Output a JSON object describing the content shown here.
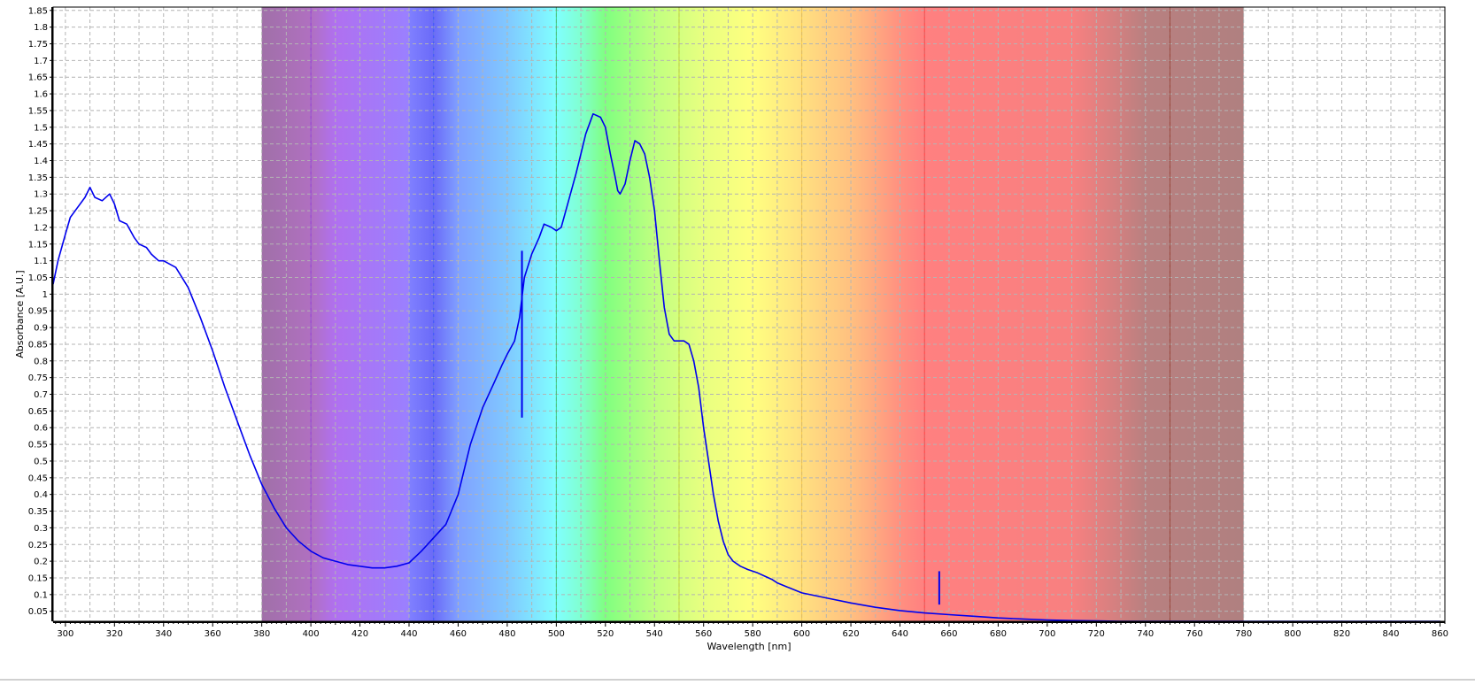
{
  "chart_data": {
    "type": "line",
    "title": "",
    "xlabel": "Wavelength [nm]",
    "ylabel": "Absorbance [A.U.]",
    "xlim": [
      295,
      862
    ],
    "ylim": [
      0.02,
      1.86
    ],
    "x_ticks": [
      300,
      320,
      340,
      360,
      380,
      400,
      420,
      440,
      460,
      480,
      500,
      520,
      540,
      560,
      580,
      600,
      620,
      640,
      660,
      680,
      700,
      720,
      740,
      760,
      780,
      800,
      820,
      840,
      860
    ],
    "y_ticks": [
      0.05,
      0.1,
      0.15,
      0.2,
      0.25,
      0.3,
      0.35,
      0.4,
      0.45,
      0.5,
      0.55,
      0.6,
      0.65,
      0.7,
      0.75,
      0.8,
      0.85,
      0.9,
      0.95,
      1,
      1.05,
      1.1,
      1.15,
      1.2,
      1.25,
      1.3,
      1.35,
      1.4,
      1.45,
      1.5,
      1.55,
      1.6,
      1.65,
      1.7,
      1.75,
      1.8,
      1.85
    ],
    "grid": true,
    "line_color": "#0000ee",
    "series": [
      {
        "x": [
          295,
          297,
          300,
          302,
          305,
          308,
          310,
          312,
          315,
          318,
          320,
          322,
          325,
          328,
          330,
          333,
          335,
          338,
          340,
          345,
          350,
          355,
          360,
          365,
          370,
          375,
          380,
          385,
          390,
          395,
          400,
          405,
          410,
          415,
          420,
          425,
          430,
          435,
          440,
          445,
          450,
          455,
          460,
          465,
          470,
          475,
          478,
          480,
          483,
          485,
          487,
          490,
          493,
          495,
          498,
          500,
          502,
          505,
          508,
          510,
          512,
          515,
          518,
          520,
          522,
          524,
          525,
          526,
          528,
          530,
          532,
          534,
          536,
          538,
          540,
          542,
          544,
          546,
          548,
          550,
          552,
          554,
          556,
          558,
          560,
          562,
          564,
          566,
          568,
          570,
          572,
          575,
          578,
          580,
          582,
          585,
          588,
          590,
          595,
          600,
          610,
          620,
          630,
          640,
          650,
          660,
          670,
          680,
          690,
          700,
          710,
          720,
          730,
          740,
          750,
          760,
          770,
          780,
          790,
          800,
          820,
          840,
          860
        ],
        "y": [
          1.03,
          1.1,
          1.18,
          1.23,
          1.26,
          1.29,
          1.32,
          1.29,
          1.28,
          1.3,
          1.27,
          1.22,
          1.21,
          1.17,
          1.15,
          1.14,
          1.12,
          1.1,
          1.1,
          1.08,
          1.02,
          0.93,
          0.83,
          0.72,
          0.62,
          0.52,
          0.43,
          0.36,
          0.3,
          0.26,
          0.23,
          0.21,
          0.2,
          0.19,
          0.185,
          0.18,
          0.18,
          0.185,
          0.195,
          0.23,
          0.27,
          0.31,
          0.4,
          0.55,
          0.66,
          0.74,
          0.79,
          0.82,
          0.86,
          0.93,
          1.05,
          1.12,
          1.17,
          1.21,
          1.2,
          1.19,
          1.2,
          1.28,
          1.36,
          1.42,
          1.48,
          1.54,
          1.53,
          1.5,
          1.42,
          1.35,
          1.31,
          1.3,
          1.33,
          1.4,
          1.46,
          1.45,
          1.42,
          1.35,
          1.25,
          1.1,
          0.96,
          0.88,
          0.86,
          0.86,
          0.86,
          0.85,
          0.8,
          0.72,
          0.6,
          0.5,
          0.4,
          0.32,
          0.26,
          0.22,
          0.2,
          0.185,
          0.175,
          0.17,
          0.165,
          0.155,
          0.145,
          0.135,
          0.12,
          0.105,
          0.09,
          0.075,
          0.062,
          0.052,
          0.045,
          0.04,
          0.035,
          0.03,
          0.027,
          0.024,
          0.022,
          0.021,
          0.02,
          0.02,
          0.02,
          0.02,
          0.02,
          0.02,
          0.02,
          0.02,
          0.02,
          0.02,
          0.02
        ]
      }
    ],
    "spectrum_band": {
      "x_start": 380,
      "x_end": 780
    },
    "spectrum_boundaries": [
      {
        "x": 400,
        "color": "#8a2be2"
      },
      {
        "x": 450,
        "color": "#3050ff"
      },
      {
        "x": 500,
        "color": "#20c060"
      },
      {
        "x": 550,
        "color": "#c0d020"
      },
      {
        "x": 600,
        "color": "#f0c040"
      },
      {
        "x": 650,
        "color": "#ff3030"
      },
      {
        "x": 750,
        "color": "#903020"
      }
    ],
    "markers": [
      {
        "x": 486,
        "y_min": 0.63,
        "y_max": 1.13
      },
      {
        "x": 656,
        "y_min": 0.07,
        "y_max": 0.17
      }
    ]
  }
}
